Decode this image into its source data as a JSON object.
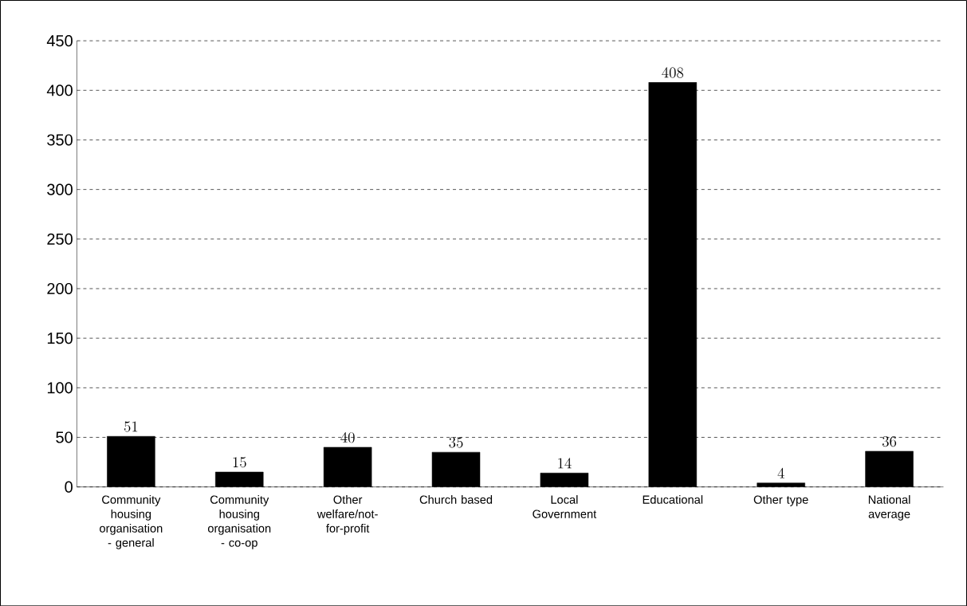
{
  "chart_data": {
    "type": "bar",
    "categories": [
      "Community housing organisation - general",
      "Community housing organisation - co-op",
      "Other welfare/not-for-profit",
      "Church based",
      "Local Government",
      "Educational",
      "Other type",
      "National average"
    ],
    "values": [
      51,
      15,
      40,
      35,
      14,
      408,
      4,
      36
    ],
    "color": "#000000",
    "ylim": [
      0,
      450
    ],
    "yticks": [
      0,
      50,
      100,
      150,
      200,
      250,
      300,
      350,
      400,
      450
    ],
    "grid": "y",
    "data_labels": true
  }
}
